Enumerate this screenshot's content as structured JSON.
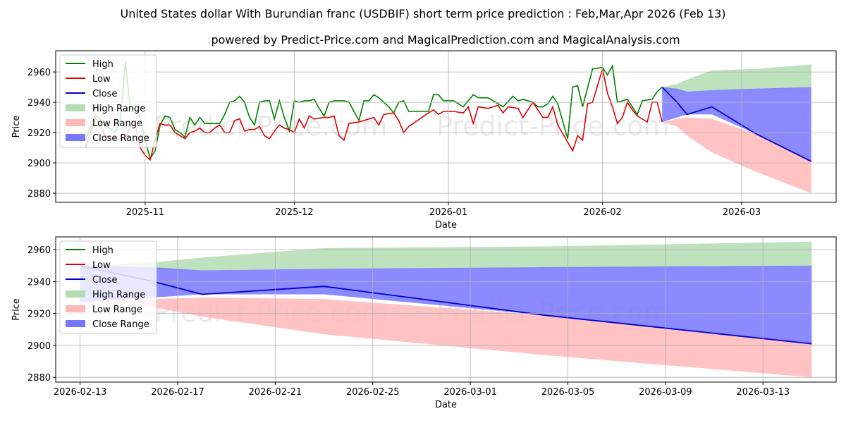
{
  "title": "United States dollar With Burundian franc (USDBIF) short term price prediction : Feb,Mar,Apr 2026 (Feb 13)",
  "subtitle": "powered by Predict-Price.com and MagicalPrediction.com and MagicalAnalysis.com",
  "watermark": "Predict-Price.com",
  "colors": {
    "high": "#008000",
    "low": "#e00000",
    "close": "#0000cc",
    "high_range": "#b3dcb3",
    "low_range": "#ffb9b9",
    "close_range": "#7777ff"
  },
  "legend": [
    "High",
    "Low",
    "Close",
    "High Range",
    "Low Range",
    "Close Range"
  ],
  "chart_data": [
    {
      "type": "line",
      "name": "history-and-forecast",
      "xlabel": "Date",
      "ylabel": "Price",
      "xlim": [
        "2025-10-14",
        "2026-03-20"
      ],
      "ylim": [
        2874,
        2974
      ],
      "xticks": [
        "2025-11",
        "2025-12",
        "2026-01",
        "2026-02",
        "2026-03"
      ],
      "yticks": [
        2880,
        2900,
        2920,
        2940,
        2960
      ],
      "grid": true,
      "legend_position": "top-left",
      "history": {
        "high": [
          [
            "2025-10-20",
            2915
          ],
          [
            "2025-10-22",
            2932
          ],
          [
            "2025-10-24",
            2925
          ],
          [
            "2025-10-26",
            2920
          ],
          [
            "2025-10-27",
            2928
          ],
          [
            "2025-10-28",
            2967
          ],
          [
            "2025-10-29",
            2937
          ],
          [
            "2025-10-30",
            2935
          ],
          [
            "2025-10-31",
            2930
          ],
          [
            "2025-11-01",
            2915
          ],
          [
            "2025-11-02",
            2903
          ],
          [
            "2025-11-03",
            2908
          ],
          [
            "2025-11-04",
            2925
          ],
          [
            "2025-11-05",
            2931
          ],
          [
            "2025-11-06",
            2930
          ],
          [
            "2025-11-07",
            2922
          ],
          [
            "2025-11-08",
            2920
          ],
          [
            "2025-11-09",
            2917
          ],
          [
            "2025-11-10",
            2930
          ],
          [
            "2025-11-11",
            2925
          ],
          [
            "2025-11-12",
            2930
          ],
          [
            "2025-11-13",
            2926
          ],
          [
            "2025-11-14",
            2926
          ],
          [
            "2025-11-15",
            2926
          ],
          [
            "2025-11-16",
            2926
          ],
          [
            "2025-11-17",
            2932
          ],
          [
            "2025-11-18",
            2940
          ],
          [
            "2025-11-19",
            2941
          ],
          [
            "2025-11-20",
            2944
          ],
          [
            "2025-11-21",
            2940
          ],
          [
            "2025-11-22",
            2930
          ],
          [
            "2025-11-23",
            2925
          ],
          [
            "2025-11-24",
            2940
          ],
          [
            "2025-11-25",
            2941
          ],
          [
            "2025-11-26",
            2941
          ],
          [
            "2025-11-27",
            2929
          ],
          [
            "2025-11-28",
            2941
          ],
          [
            "2025-11-29",
            2930
          ],
          [
            "2025-11-30",
            2921
          ],
          [
            "2025-12-01",
            2941
          ],
          [
            "2025-12-02",
            2940
          ],
          [
            "2025-12-03",
            2941
          ],
          [
            "2025-12-04",
            2941
          ],
          [
            "2025-12-05",
            2942
          ],
          [
            "2025-12-06",
            2936
          ],
          [
            "2025-12-07",
            2931
          ],
          [
            "2025-12-08",
            2940
          ],
          [
            "2025-12-09",
            2941
          ],
          [
            "2025-12-10",
            2941
          ],
          [
            "2025-12-11",
            2941
          ],
          [
            "2025-12-12",
            2940
          ],
          [
            "2025-12-14",
            2928
          ],
          [
            "2025-12-15",
            2941
          ],
          [
            "2025-12-16",
            2941
          ],
          [
            "2025-12-17",
            2945
          ],
          [
            "2025-12-18",
            2943
          ],
          [
            "2025-12-19",
            2940
          ],
          [
            "2025-12-20",
            2937
          ],
          [
            "2025-12-21",
            2933
          ],
          [
            "2025-12-22",
            2940
          ],
          [
            "2025-12-23",
            2941
          ],
          [
            "2025-12-24",
            2934
          ],
          [
            "2025-12-28",
            2934
          ],
          [
            "2025-12-29",
            2945
          ],
          [
            "2025-12-30",
            2945
          ],
          [
            "2025-12-31",
            2941
          ],
          [
            "2026-01-02",
            2941
          ],
          [
            "2026-01-04",
            2937
          ],
          [
            "2026-01-06",
            2945
          ],
          [
            "2026-01-07",
            2943
          ],
          [
            "2026-01-09",
            2943
          ],
          [
            "2026-01-10",
            2941
          ],
          [
            "2026-01-12",
            2937
          ],
          [
            "2026-01-14",
            2944
          ],
          [
            "2026-01-15",
            2941
          ],
          [
            "2026-01-16",
            2942
          ],
          [
            "2026-01-18",
            2940
          ],
          [
            "2026-01-19",
            2937
          ],
          [
            "2026-01-20",
            2937
          ],
          [
            "2026-01-21",
            2939
          ],
          [
            "2026-01-22",
            2944
          ],
          [
            "2026-01-23",
            2939
          ],
          [
            "2026-01-25",
            2916
          ],
          [
            "2026-01-26",
            2950
          ],
          [
            "2026-01-27",
            2951
          ],
          [
            "2026-01-28",
            2937
          ],
          [
            "2026-01-30",
            2962
          ],
          [
            "2026-02-01",
            2963
          ],
          [
            "2026-02-02",
            2958
          ],
          [
            "2026-02-03",
            2964
          ],
          [
            "2026-02-04",
            2940
          ],
          [
            "2026-02-06",
            2942
          ],
          [
            "2026-02-07",
            2937
          ],
          [
            "2026-02-08",
            2932
          ],
          [
            "2026-02-09",
            2941
          ],
          [
            "2026-02-11",
            2942
          ],
          [
            "2026-02-12",
            2947
          ],
          [
            "2026-02-13",
            2950
          ]
        ],
        "low": [
          [
            "2025-10-20",
            2910
          ],
          [
            "2025-10-22",
            2930
          ],
          [
            "2025-10-24",
            2918
          ],
          [
            "2025-10-26",
            2916
          ],
          [
            "2025-10-28",
            2915
          ],
          [
            "2025-10-29",
            2924
          ],
          [
            "2025-10-30",
            2926
          ],
          [
            "2025-10-31",
            2910
          ],
          [
            "2025-11-01",
            2905
          ],
          [
            "2025-11-02",
            2902
          ],
          [
            "2025-11-03",
            2915
          ],
          [
            "2025-11-04",
            2926
          ],
          [
            "2025-11-05",
            2925
          ],
          [
            "2025-11-06",
            2925
          ],
          [
            "2025-11-07",
            2920
          ],
          [
            "2025-11-08",
            2918
          ],
          [
            "2025-11-09",
            2916
          ],
          [
            "2025-11-10",
            2920
          ],
          [
            "2025-11-11",
            2921
          ],
          [
            "2025-11-12",
            2923
          ],
          [
            "2025-11-13",
            2920
          ],
          [
            "2025-11-14",
            2920
          ],
          [
            "2025-11-15",
            2923
          ],
          [
            "2025-11-16",
            2925
          ],
          [
            "2025-11-17",
            2920
          ],
          [
            "2025-11-18",
            2920
          ],
          [
            "2025-11-19",
            2928
          ],
          [
            "2025-11-20",
            2929
          ],
          [
            "2025-11-21",
            2921
          ],
          [
            "2025-11-22",
            2922
          ],
          [
            "2025-11-23",
            2922
          ],
          [
            "2025-11-24",
            2924
          ],
          [
            "2025-11-25",
            2918
          ],
          [
            "2025-11-26",
            2916
          ],
          [
            "2025-11-27",
            2921
          ],
          [
            "2025-11-28",
            2925
          ],
          [
            "2025-11-29",
            2923
          ],
          [
            "2025-11-30",
            2922
          ],
          [
            "2025-12-01",
            2920
          ],
          [
            "2025-12-02",
            2929
          ],
          [
            "2025-12-03",
            2923
          ],
          [
            "2025-12-04",
            2931
          ],
          [
            "2025-12-05",
            2929
          ],
          [
            "2025-12-07",
            2930
          ],
          [
            "2025-12-08",
            2930
          ],
          [
            "2025-12-09",
            2931
          ],
          [
            "2025-12-10",
            2918
          ],
          [
            "2025-12-11",
            2915
          ],
          [
            "2025-12-12",
            2926
          ],
          [
            "2025-12-14",
            2927
          ],
          [
            "2025-12-17",
            2930
          ],
          [
            "2025-12-18",
            2925
          ],
          [
            "2025-12-19",
            2932
          ],
          [
            "2025-12-21",
            2933
          ],
          [
            "2025-12-22",
            2928
          ],
          [
            "2025-12-23",
            2920
          ],
          [
            "2025-12-24",
            2924
          ],
          [
            "2025-12-28",
            2933
          ],
          [
            "2025-12-29",
            2935
          ],
          [
            "2025-12-30",
            2932
          ],
          [
            "2025-12-31",
            2934
          ],
          [
            "2026-01-02",
            2934
          ],
          [
            "2026-01-04",
            2933
          ],
          [
            "2026-01-05",
            2937
          ],
          [
            "2026-01-06",
            2926
          ],
          [
            "2026-01-07",
            2937
          ],
          [
            "2026-01-09",
            2936
          ],
          [
            "2026-01-11",
            2938
          ],
          [
            "2026-01-12",
            2933
          ],
          [
            "2026-01-13",
            2937
          ],
          [
            "2026-01-15",
            2936
          ],
          [
            "2026-01-16",
            2930
          ],
          [
            "2026-01-17",
            2935
          ],
          [
            "2026-01-18",
            2940
          ],
          [
            "2026-01-20",
            2930
          ],
          [
            "2026-01-21",
            2930
          ],
          [
            "2026-01-22",
            2937
          ],
          [
            "2026-01-23",
            2925
          ],
          [
            "2026-01-26",
            2908
          ],
          [
            "2026-01-27",
            2918
          ],
          [
            "2026-01-28",
            2915
          ],
          [
            "2026-01-29",
            2939
          ],
          [
            "2026-01-30",
            2940
          ],
          [
            "2026-02-01",
            2962
          ],
          [
            "2026-02-02",
            2946
          ],
          [
            "2026-02-03",
            2937
          ],
          [
            "2026-02-04",
            2926
          ],
          [
            "2026-02-05",
            2930
          ],
          [
            "2026-02-06",
            2940
          ],
          [
            "2026-02-07",
            2935
          ],
          [
            "2026-02-08",
            2931
          ],
          [
            "2026-02-09",
            2929
          ],
          [
            "2026-02-10",
            2927
          ],
          [
            "2026-02-11",
            2940
          ],
          [
            "2026-02-12",
            2940
          ],
          [
            "2026-02-13",
            2927
          ]
        ],
        "close": []
      },
      "forecast": {
        "dates": [
          "2026-02-13",
          "2026-02-16",
          "2026-02-18",
          "2026-02-23",
          "2026-03-04",
          "2026-03-15"
        ],
        "close": [
          2950,
          2940,
          2932,
          2937,
          2919,
          2901
        ],
        "high_range": [
          [
            2946,
            2950
          ],
          [
            2947,
            2952
          ],
          [
            2947,
            2955
          ],
          [
            2948,
            2961
          ],
          [
            2948,
            2962
          ],
          [
            2950,
            2965
          ]
        ],
        "low_range": [
          [
            2927,
            2927
          ],
          [
            2924,
            2929
          ],
          [
            2918,
            2930
          ],
          [
            2907,
            2929
          ],
          [
            2894,
            2919
          ],
          [
            2880,
            2903
          ]
        ],
        "close_range": [
          [
            2927,
            2950
          ],
          [
            2930,
            2949
          ],
          [
            2932,
            2947
          ],
          [
            2932,
            2948
          ],
          [
            2919,
            2949
          ],
          [
            2901,
            2950
          ]
        ]
      }
    },
    {
      "type": "line",
      "name": "forecast-zoom",
      "xlabel": "Date",
      "ylabel": "Price",
      "xlim": [
        "2026-02-12",
        "2026-03-16"
      ],
      "ylim": [
        2877,
        2968
      ],
      "xticks": [
        "2026-02-13",
        "2026-02-17",
        "2026-02-21",
        "2026-02-25",
        "2026-03-01",
        "2026-03-05",
        "2026-03-09",
        "2026-03-13"
      ],
      "yticks": [
        2880,
        2900,
        2920,
        2940,
        2960
      ],
      "grid": true,
      "legend_position": "top-left"
    }
  ]
}
